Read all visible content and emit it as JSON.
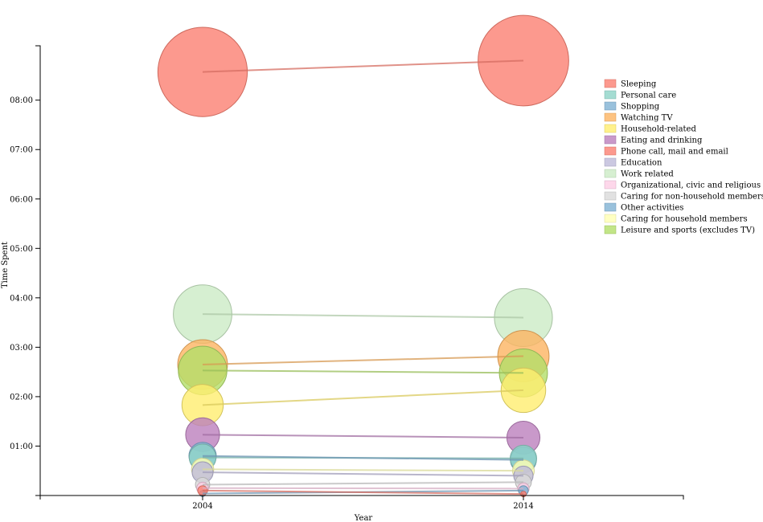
{
  "chart_data": {
    "type": "scatter",
    "subtype": "bubble-slope",
    "xlabel": "Year",
    "ylabel": "Time Spent",
    "x": [
      "2004",
      "2014"
    ],
    "y_unit": "hours",
    "ylim": [
      0,
      9.1
    ],
    "y_ticks": [
      {
        "value": 1,
        "label": "01:00"
      },
      {
        "value": 2,
        "label": "02:00"
      },
      {
        "value": 3,
        "label": "03:00"
      },
      {
        "value": 4,
        "label": "04:00"
      },
      {
        "value": 5,
        "label": "05:00"
      },
      {
        "value": 6,
        "label": "06:00"
      },
      {
        "value": 7,
        "label": "07:00"
      },
      {
        "value": 8,
        "label": "08:00"
      }
    ],
    "legend_position": "right",
    "grid": false,
    "series": [
      {
        "name": "Sleeping",
        "color": "#fb8072",
        "values": [
          8.57,
          8.8
        ]
      },
      {
        "name": "Personal care",
        "color": "#8dd3c7",
        "values": [
          0.77,
          0.75
        ]
      },
      {
        "name": "Shopping",
        "color": "#80b1d3",
        "values": [
          0.04,
          0.1
        ]
      },
      {
        "name": "Watching TV",
        "color": "#fdb462",
        "values": [
          2.65,
          2.82
        ]
      },
      {
        "name": "Household-related",
        "color": "#ffed6f",
        "values": [
          1.83,
          2.13
        ]
      },
      {
        "name": "Eating and drinking",
        "color": "#bc80bd",
        "values": [
          1.23,
          1.17
        ]
      },
      {
        "name": "Phone call, mail and email",
        "color": "#fb8072",
        "values": [
          0.1,
          0.03
        ]
      },
      {
        "name": "Education",
        "color": "#bebada",
        "values": [
          0.47,
          0.4
        ]
      },
      {
        "name": "Work related",
        "color": "#ccebc5",
        "values": [
          3.67,
          3.6
        ]
      },
      {
        "name": "Organizational, civic and religious activities",
        "color": "#fccde5",
        "values": [
          0.15,
          0.14
        ]
      },
      {
        "name": "Caring for non-household members",
        "color": "#d9d9d9",
        "values": [
          0.22,
          0.27
        ]
      },
      {
        "name": "Other activities",
        "color": "#80b1d3",
        "values": [
          0.8,
          0.72
        ]
      },
      {
        "name": "Caring for household members",
        "color": "#ffffb3",
        "values": [
          0.53,
          0.5
        ]
      },
      {
        "name": "Leisure and sports (excludes TV)",
        "color": "#b3de69",
        "values": [
          2.53,
          2.48
        ]
      }
    ]
  }
}
